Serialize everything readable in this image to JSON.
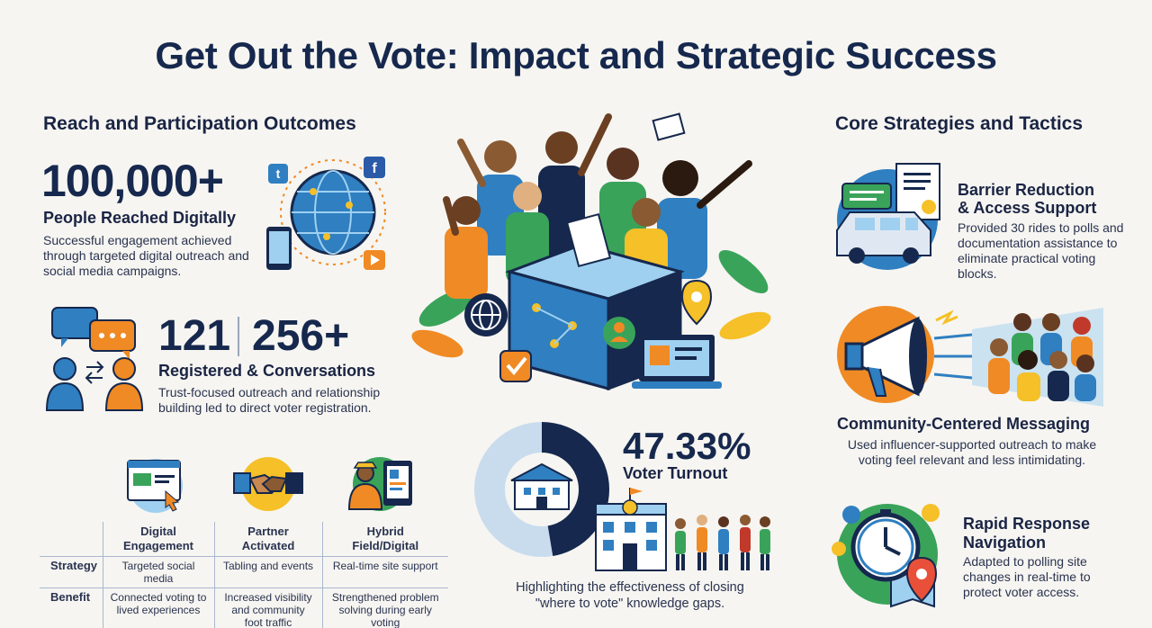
{
  "title": "Get Out the Vote: Impact and Strategic Success",
  "left": {
    "heading": "Reach and Participation Outcomes",
    "stat1": {
      "value": "100,000+",
      "label": "People Reached Digitally",
      "desc_lines": [
        "Successful engagement achieved",
        "through targeted digital outreach and",
        "social media campaigns."
      ]
    },
    "stat2": {
      "value_a": "121",
      "value_b": "256+",
      "label": "Registered & Conversations",
      "desc_lines": [
        "Trust-focused outreach and relationship",
        "building led to direct voter registration."
      ]
    }
  },
  "table": {
    "columns": [
      {
        "label_lines": [
          "Digital",
          "Engagement"
        ],
        "icon": "web-browser-icon"
      },
      {
        "label_lines": [
          "Partner",
          "Activated"
        ],
        "icon": "handshake-icon"
      },
      {
        "label_lines": [
          "Hybrid",
          "Field/Digital"
        ],
        "icon": "field-worker-tablet-icon"
      }
    ],
    "rows": [
      {
        "label": "Strategy",
        "cells": [
          [
            "Targeted social media"
          ],
          [
            "Tabling and events"
          ],
          [
            "Real-time site support"
          ]
        ]
      },
      {
        "label": "Benefit",
        "cells": [
          [
            "Connected voting to",
            "lived experiences"
          ],
          [
            "Increased visibility",
            "and community",
            "foot traffic"
          ],
          [
            "Strengthened problem",
            "solving during early",
            "voting"
          ]
        ]
      }
    ]
  },
  "center": {
    "turnout": {
      "value": "47.33%",
      "label": "Voter Turnout",
      "percent": 47.33
    },
    "caption_lines": [
      "Highlighting the effectiveness of closing",
      "\"where to vote\" knowledge gaps."
    ]
  },
  "right": {
    "heading": "Core Strategies and Tactics",
    "items": [
      {
        "title_lines": [
          "Barrier Reduction",
          "& Access Support"
        ],
        "desc_lines": [
          "Provided 30 rides to polls and",
          "documentation assistance to",
          "eliminate practical voting",
          "blocks."
        ],
        "icon": "van-documents-icon"
      },
      {
        "title_lines": [
          "Community-Centered Messaging"
        ],
        "desc_lines": [
          "Used influencer-supported outreach to make",
          "voting feel relevant and less intimidating."
        ],
        "icon": "megaphone-icon"
      },
      {
        "title_lines": [
          "Rapid Response",
          "Navigation"
        ],
        "desc_lines": [
          "Adapted to polling site",
          "changes in real-time to",
          "protect voter access."
        ],
        "icon": "clock-map-pin-icon"
      }
    ]
  },
  "colors": {
    "navy": "#16284d",
    "blue": "#2f7fc1",
    "orange": "#f08a24",
    "green": "#3aa35a",
    "yellow": "#f5c028"
  }
}
